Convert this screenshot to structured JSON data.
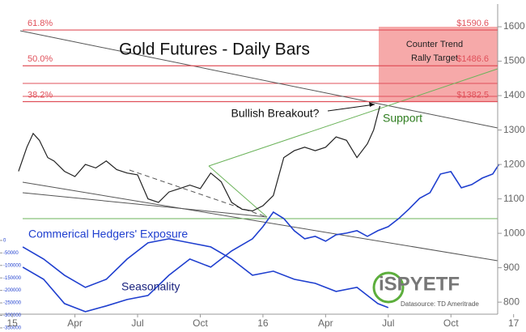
{
  "chart_data": {
    "type": "line",
    "title": "Gold Futures - Daily Bars",
    "xlim": [
      -0.2,
      24.4
    ],
    "xticks": [
      {
        "value": 0,
        "label": "15"
      },
      {
        "value": 3,
        "label": "Apr"
      },
      {
        "value": 6,
        "label": "Jul"
      },
      {
        "value": 9,
        "label": "Oct"
      },
      {
        "value": 12,
        "label": "16"
      },
      {
        "value": 15,
        "label": "Apr"
      },
      {
        "value": 18,
        "label": "Jul"
      },
      {
        "value": 21,
        "label": "Oct"
      },
      {
        "value": 24,
        "label": "17"
      }
    ],
    "ylim": [
      718,
      1666
    ],
    "yticks": [
      800,
      900,
      1000,
      1100,
      1200,
      1300,
      1400,
      1500,
      1600
    ],
    "y2lim": [
      -360000,
      946000
    ],
    "y2ticks": [
      0,
      -50000,
      -100000,
      -150000,
      -200000,
      -250000,
      -300000,
      -350000
    ],
    "series": [
      {
        "color": "#222222",
        "x": [
          0.3,
          0.7,
          1,
          1.3,
          1.7,
          2,
          2.5,
          3,
          3.5,
          4,
          4.5,
          5,
          5.5,
          6,
          6.5,
          7,
          7.5,
          8,
          8.5,
          9,
          9.5,
          10,
          10.5,
          11,
          11.5,
          12,
          12.5,
          13,
          13.5,
          14,
          14.5,
          15,
          15.5,
          16,
          16.5,
          17,
          17.3,
          17.6
        ],
        "values": [
          1180,
          1250,
          1290,
          1270,
          1220,
          1210,
          1180,
          1165,
          1200,
          1190,
          1210,
          1185,
          1175,
          1170,
          1100,
          1090,
          1120,
          1130,
          1140,
          1130,
          1175,
          1150,
          1090,
          1070,
          1065,
          1080,
          1110,
          1220,
          1240,
          1250,
          1240,
          1250,
          1280,
          1270,
          1220,
          1260,
          1300,
          1370
        ]
      },
      {
        "name": "Commerical Hedgers' Exposure",
        "color": "#1f3fcf",
        "axis": "y2",
        "x": [
          0.5,
          1.5,
          2.5,
          3.5,
          4.5,
          5.5,
          6.5,
          7.5,
          8.5,
          9.5,
          10.5,
          11.5,
          12,
          12.5,
          13,
          13.5,
          14,
          14.5,
          15,
          15.5,
          16,
          16.5,
          17,
          17.5,
          18,
          18.5,
          19,
          19.5,
          20,
          20.5,
          21,
          21.5,
          22,
          22.5,
          23,
          23.3
        ],
        "values": [
          -107000,
          -155500,
          -252800,
          -285000,
          -262000,
          -236500,
          -220300,
          -139300,
          -74500,
          -107000,
          -42100,
          6500,
          55000,
          113400,
          87500,
          38900,
          6500,
          16200,
          -3200,
          22700,
          29200,
          38900,
          16200,
          38900,
          55000,
          87500,
          126400,
          168500,
          191200,
          265700,
          275400,
          210600,
          223600,
          249500,
          265700,
          304600
        ]
      },
      {
        "name": "Seasonality",
        "color": "#1f3fcf",
        "axis": "y2",
        "x": [
          0.5,
          1.5,
          2.5,
          3.5,
          4.5,
          5.5,
          6.5,
          7.5,
          8.5,
          9.5,
          10.5,
          11.5,
          12.5,
          13.5,
          14.5,
          15.5,
          16.5,
          17,
          17.5,
          18
        ],
        "values": [
          -25900,
          -74500,
          -139300,
          -188000,
          -155500,
          -74500,
          -9700,
          6500,
          -9700,
          -25900,
          -74500,
          -139300,
          -123100,
          -155500,
          -171700,
          -204100,
          -188000,
          -220300,
          -252800,
          -269000
        ]
      }
    ],
    "fib": {
      "labels": [
        "61.8%",
        "50.0%",
        "38.2%"
      ],
      "values": [
        1590.6,
        1486.6,
        1382.5
      ],
      "value_labels": [
        "$1590.6",
        "$1486.6",
        "$1382.5"
      ],
      "color": "#e0505a"
    },
    "annotations": [
      "Counter Trend",
      "Rally Target",
      "Bullish Breakout?",
      "Support"
    ],
    "logo": "iSPYETF",
    "source": "Datasource: TD Ameritrade"
  }
}
